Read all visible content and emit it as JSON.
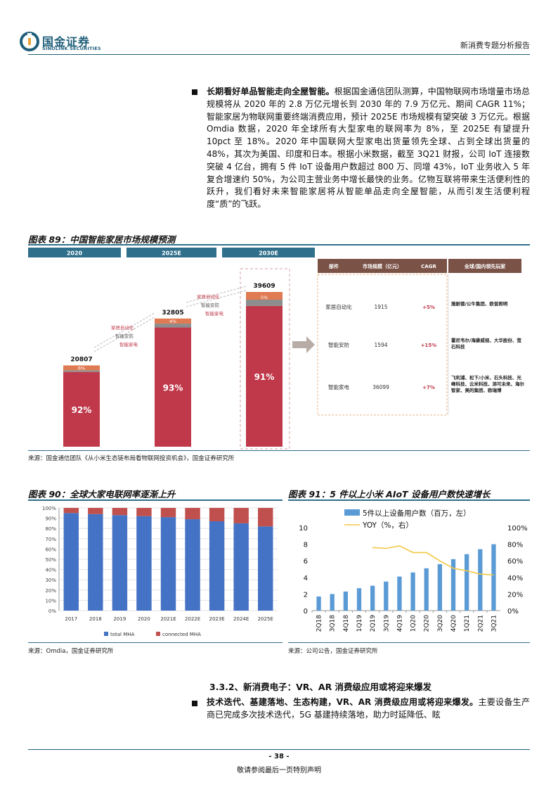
{
  "header": {
    "logo_cn": "国金证券",
    "logo_en": "SINOLINK SECURITIES",
    "report_title": "新消费专题分析报告"
  },
  "intro": {
    "lead": "长期看好单品智能走向全屋智能。",
    "text": "根据国金通信团队测算，中国物联网市场增量市场总规模将从 2020 年的 2.8 万亿元增长到 2030 年的 7.9 万亿元、期间 CAGR 11%；智能家居为物联网重要终端消费应用，预计 2025E 市场规模有望突破 3 万亿元。根据 Omdia 数据，2020 年全球所有大型家电的联网率为 8%，至 2025E 有望提升 10pct 至 18%。2020 年中国联网大型家电出货量领先全球、占到全球出货量的 48%，其次为美国、印度和日本。根据小米数据，截至 3Q21 财报，公司 IoT 连接数突破 4 亿台，拥有 5 件 IoT 设备用户数超过 800 万、同增 43%，IoT 业务收入 5 年复合增速约 50%，为公司主营业务中增长最快的业务。亿物互联将带来生活便利性的跃升，我们看好未来智能家居将从智能单品走向全屋智能，从而引发生活便利程度“质”的飞跃。"
  },
  "fig89": {
    "title": "图表 89：中国智能家居市场规模预测",
    "source": "来源：国金通信团队《从小米生态链布局看物联网投资机会》，国金证券研究所",
    "tabs": [
      "2020",
      "2025E",
      "2030E"
    ],
    "table_headers": [
      "部件",
      "市场规模（亿元）",
      "CAGR",
      "全球/国内领先玩家"
    ],
    "rows": [
      {
        "part": "家居自动化",
        "size": "1915",
        "cagr": "+5%",
        "players": "施耐德/公牛集团、欧普照明"
      },
      {
        "part": "智能安防",
        "size": "1594",
        "cagr": "+15%",
        "players": "霍尼韦尔/海康威视、大华股份、萤石科技"
      },
      {
        "part": "智能家电",
        "size": "36099",
        "cagr": "+7%",
        "players": "飞利浦、松下/小米、石头科技、光峰科技、云米科技、添可未来、海尔智家、美的集团、欧瑞博"
      }
    ],
    "labels": {
      "a": "家居自动化",
      "b": "智能安防",
      "c": "智能家电"
    }
  },
  "fig90": {
    "title": "图表 90：全球大家电联网率逐渐上升",
    "source": "来源：Omdia，国金证券研究所"
  },
  "fig91": {
    "title": "图表 91：5 件以上小米 AIoT 设备用户数快速增长",
    "source": "来源：公司公告，国金证券研究所"
  },
  "chart_data": [
    {
      "type": "bar",
      "categories": [
        "2020",
        "2025E",
        "2030E"
      ],
      "totals": [
        20807,
        32805,
        39609
      ],
      "series": [
        {
          "name": "智能家电",
          "values": [
            92,
            93,
            91
          ]
        },
        {
          "name": "智能安防",
          "values": [
            2,
            3,
            4
          ]
        },
        {
          "name": "家居自动化",
          "values": [
            6,
            4,
            5
          ]
        }
      ],
      "labels": {
        "pct_main": [
          "92%",
          "93%",
          "91%"
        ],
        "pct_top": [
          "6%",
          "4%",
          "5%"
        ],
        "totals_text": [
          "20807",
          "32805",
          "39609"
        ]
      },
      "colors": {
        "main": "#c0394a",
        "mid": "#8d8d8d",
        "top": "#e07a52"
      }
    },
    {
      "type": "bar",
      "categories": [
        "2017",
        "2018",
        "2019",
        "2020",
        "2021E",
        "2022E",
        "2023E",
        "2024E",
        "2025E"
      ],
      "series": [
        {
          "name": "total MHA",
          "values": [
            95,
            94,
            93,
            92,
            91,
            89,
            87,
            85,
            82
          ]
        },
        {
          "name": "connected MHA",
          "values": [
            5,
            6,
            7,
            8,
            9,
            11,
            13,
            15,
            18
          ]
        }
      ],
      "yticks": [
        "0%",
        "10%",
        "20%",
        "30%",
        "40%",
        "50%",
        "60%",
        "70%",
        "80%",
        "90%",
        "100%"
      ],
      "ylim": [
        0,
        100
      ],
      "colors": {
        "total": "#4472c4",
        "connected": "#c0504d"
      }
    },
    {
      "type": "bar",
      "categories": [
        "2Q18",
        "3Q18",
        "4Q18",
        "1Q19",
        "2Q19",
        "3Q19",
        "4Q19",
        "1Q20",
        "2Q20",
        "3Q20",
        "4Q20",
        "1Q21",
        "2Q21",
        "3Q21"
      ],
      "series": [
        {
          "name": "5件以上设备用户数（百万，左）",
          "values": [
            1.7,
            2.0,
            2.3,
            2.7,
            3.0,
            3.5,
            4.1,
            4.6,
            5.1,
            5.6,
            6.2,
            6.8,
            7.4,
            8.0
          ]
        },
        {
          "name": "YOY（%，右）",
          "values": [
            null,
            null,
            null,
            null,
            76,
            75,
            78,
            70,
            70,
            60,
            51,
            48,
            44,
            43
          ]
        }
      ],
      "yticks_left": [
        "0",
        "2",
        "4",
        "6",
        "8",
        "10"
      ],
      "yticks_right": [
        "0%",
        "20%",
        "40%",
        "60%",
        "80%",
        "100%"
      ],
      "ylim_left": [
        0,
        10
      ],
      "ylim_right": [
        0,
        100
      ],
      "colors": {
        "bar": "#5b9bd5",
        "line": "#f2c744"
      }
    }
  ],
  "section": {
    "title": "3.3.2、新消费电子：VR、AR 消费级应用或将迎来爆发",
    "lead": "技术迭代、基建落地、生态构建，VR、AR 消费级应用或将迎来爆发。",
    "text": "主要设备生产商已完成多次技术迭代，5G 基建持续落地，助力时延降低、眩"
  },
  "footer": {
    "page": "- 38 -",
    "disclaimer": "敬请参阅最后一页特别声明"
  }
}
